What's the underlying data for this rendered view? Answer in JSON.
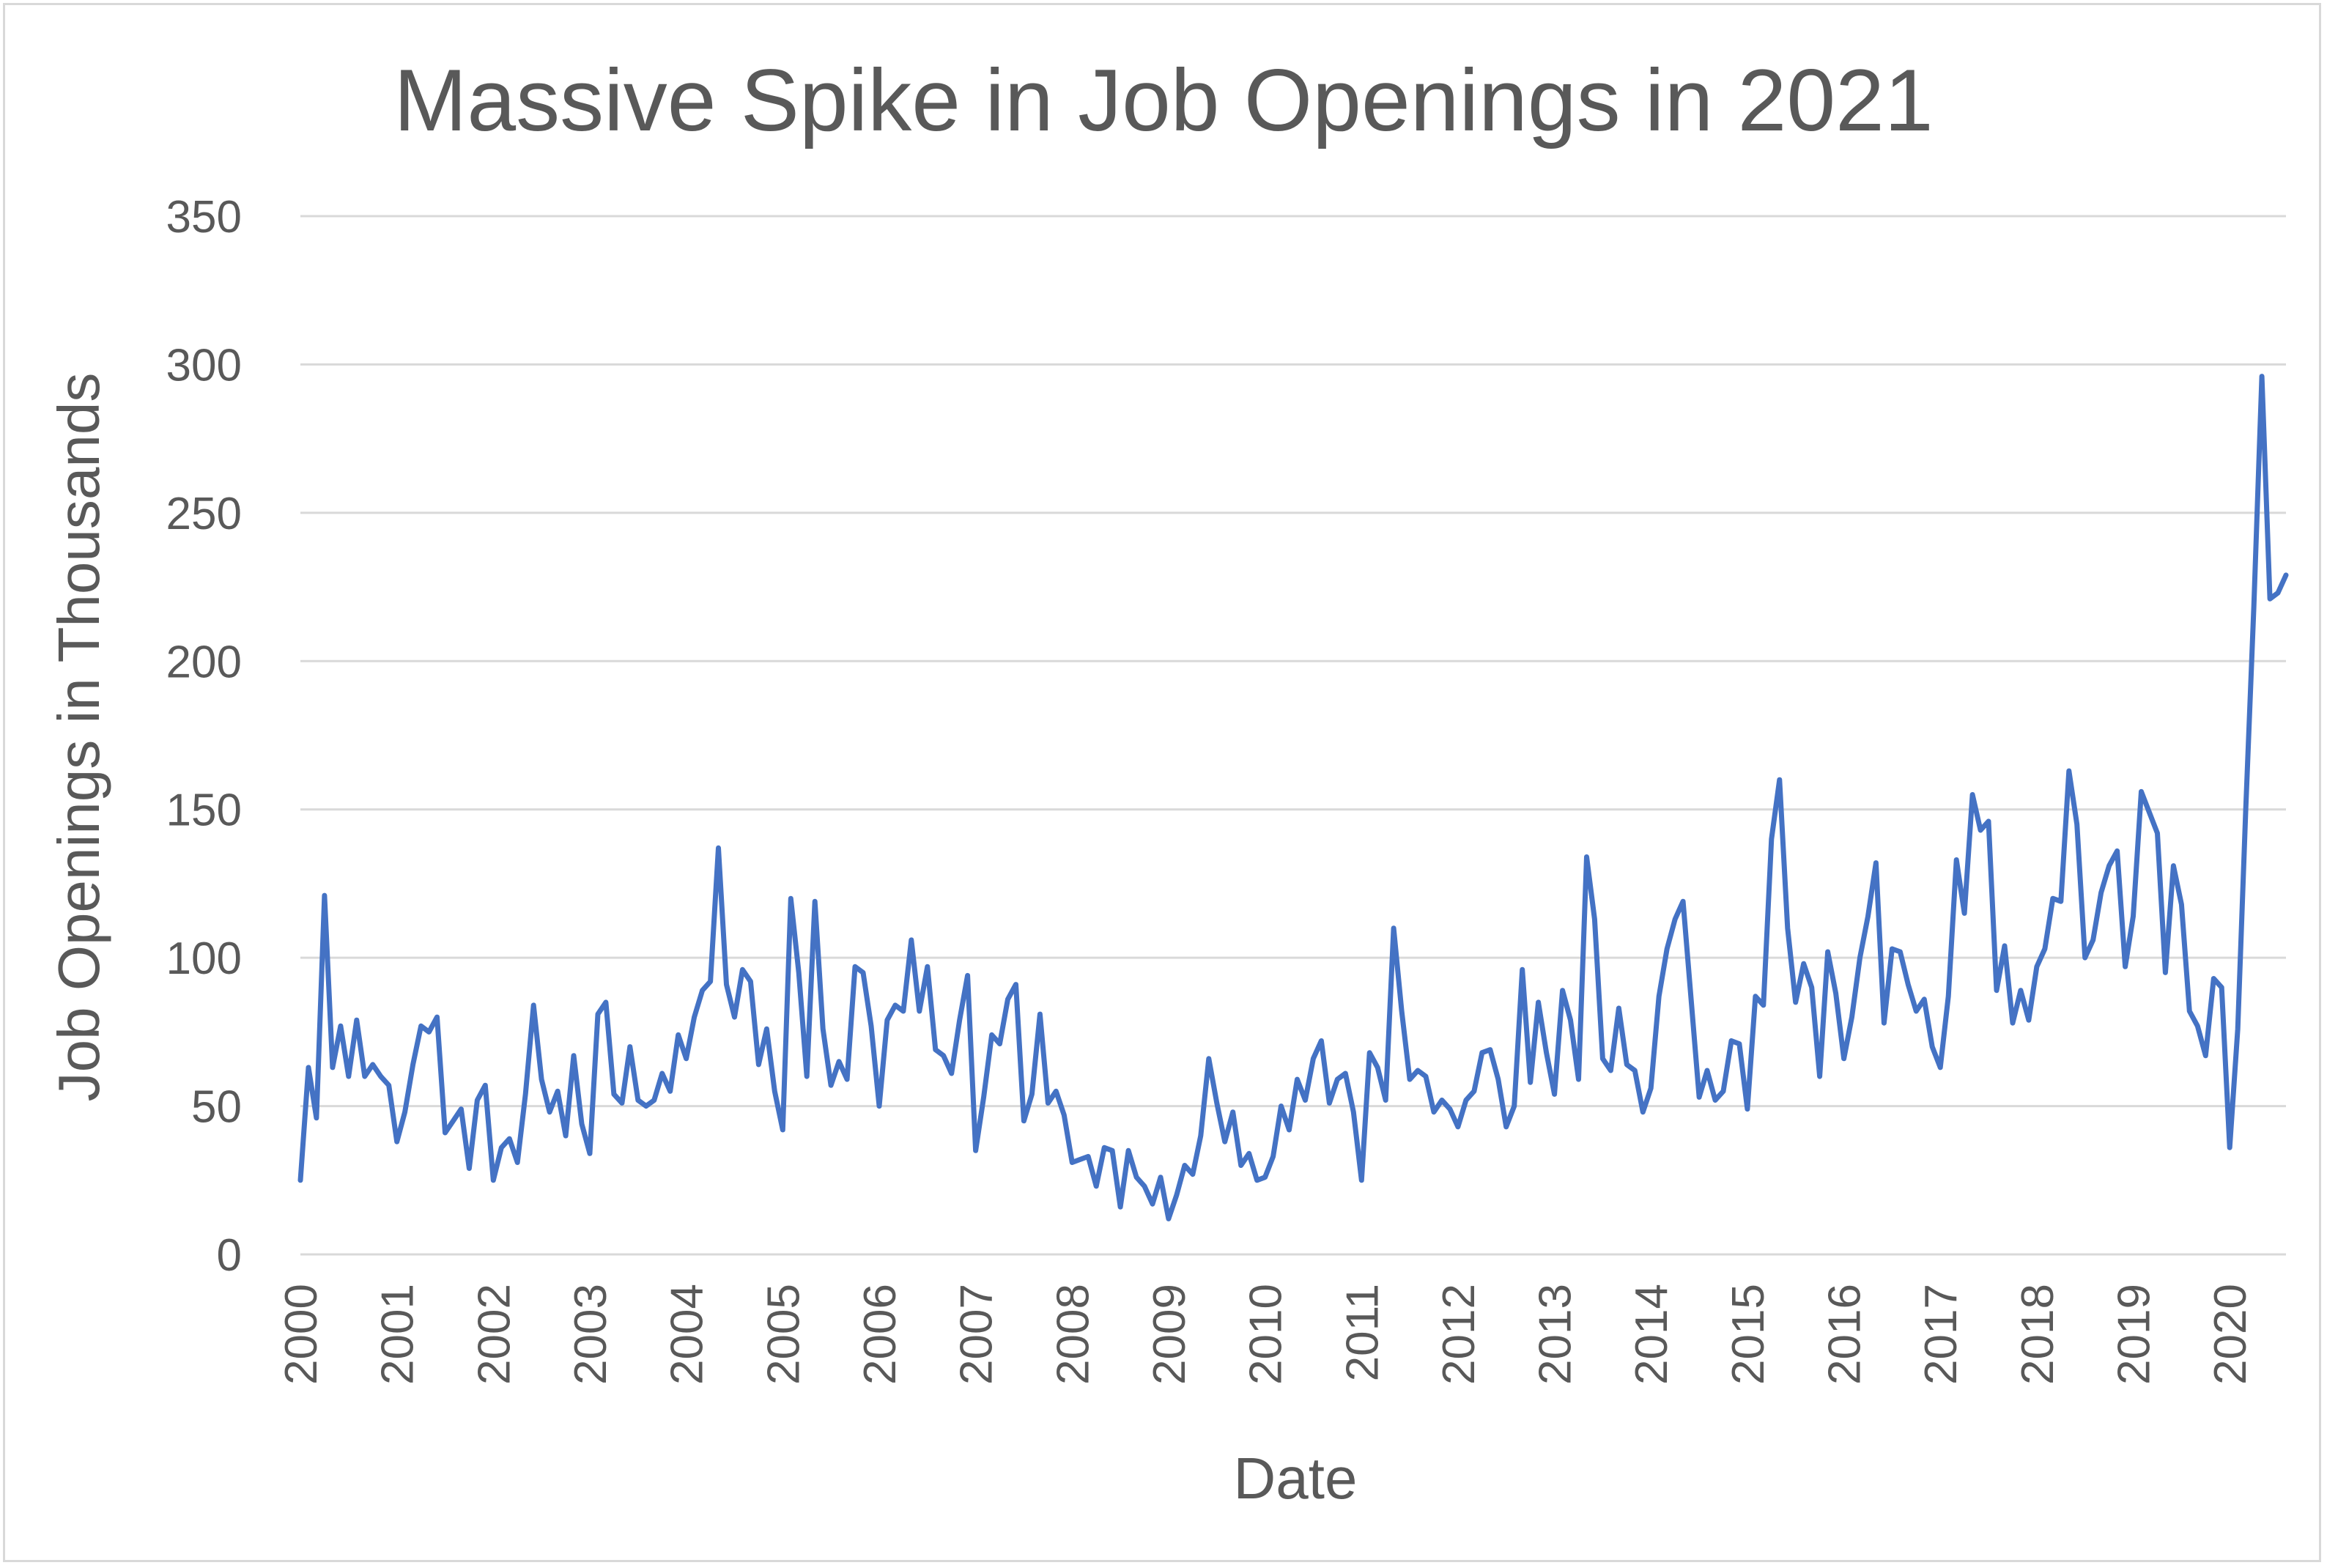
{
  "chart_data": {
    "type": "line",
    "title": "Massive Spike in Job Openings in 2021",
    "xlabel": "Date",
    "ylabel": "Job Openings in Thousands",
    "ylim": [
      0,
      350
    ],
    "yticks": [
      "0",
      "50",
      "100",
      "150",
      "200",
      "250",
      "300",
      "350"
    ],
    "xticks": [
      "2000",
      "2001",
      "2002",
      "2003",
      "2004",
      "2005",
      "2006",
      "2007",
      "2008",
      "2009",
      "2010",
      "2011",
      "2012",
      "2013",
      "2014",
      "2015",
      "2016",
      "2017",
      "2018",
      "2019",
      "2020"
    ],
    "grid": true,
    "legend": "none",
    "series_color": "#4472C4",
    "series": [
      {
        "x_start": "2000-01",
        "frequency": "monthly",
        "values": [
          25,
          63,
          46,
          121,
          63,
          77,
          60,
          79,
          60,
          64,
          60,
          57,
          38,
          48,
          64,
          77,
          75,
          80,
          41,
          45,
          49,
          29,
          52,
          57,
          25,
          36,
          39,
          31,
          54,
          84,
          59,
          48,
          55,
          40,
          67,
          44,
          34,
          81,
          85,
          54,
          51,
          70,
          52,
          50,
          52,
          61,
          55,
          74,
          66,
          80,
          89,
          92,
          137,
          91,
          80,
          96,
          92,
          64,
          76,
          55,
          42,
          120,
          95,
          60,
          119,
          76,
          57,
          65,
          59,
          97,
          95,
          77,
          50,
          79,
          84,
          82,
          106,
          82,
          97,
          69,
          67,
          61,
          79,
          94,
          35,
          53,
          74,
          71,
          86,
          91,
          45,
          54,
          81,
          51,
          55,
          47,
          31,
          32,
          33,
          23,
          36,
          35,
          16,
          35,
          26,
          23,
          17,
          26,
          12,
          20,
          30,
          27,
          40,
          66,
          51,
          38,
          48,
          30,
          34,
          25,
          26,
          33,
          50,
          42,
          59,
          52,
          66,
          72,
          51,
          59,
          61,
          48,
          25,
          68,
          63,
          52,
          110,
          82,
          59,
          62,
          60,
          48,
          52,
          49,
          43,
          52,
          55,
          68,
          69,
          59,
          43,
          50,
          96,
          58,
          85,
          68,
          54,
          89,
          79,
          59,
          134,
          113,
          66,
          62,
          83,
          64,
          62,
          48,
          56,
          87,
          103,
          113,
          119,
          86,
          53,
          62,
          52,
          55,
          72,
          71,
          49,
          87,
          84,
          140,
          160,
          110,
          85,
          98,
          90,
          60,
          102,
          88,
          66,
          80,
          100,
          114,
          132,
          78,
          103,
          102,
          91,
          82,
          86,
          70,
          63,
          87,
          133,
          115,
          155,
          143,
          146,
          89,
          104,
          78,
          89,
          79,
          97,
          103,
          120,
          119,
          163,
          145,
          100,
          106,
          122,
          131,
          136,
          97,
          114,
          156,
          149,
          142,
          95,
          131,
          118,
          82,
          77,
          67,
          93,
          90,
          36,
          76,
          150,
          218,
          296,
          221,
          223,
          229
        ]
      }
    ]
  }
}
